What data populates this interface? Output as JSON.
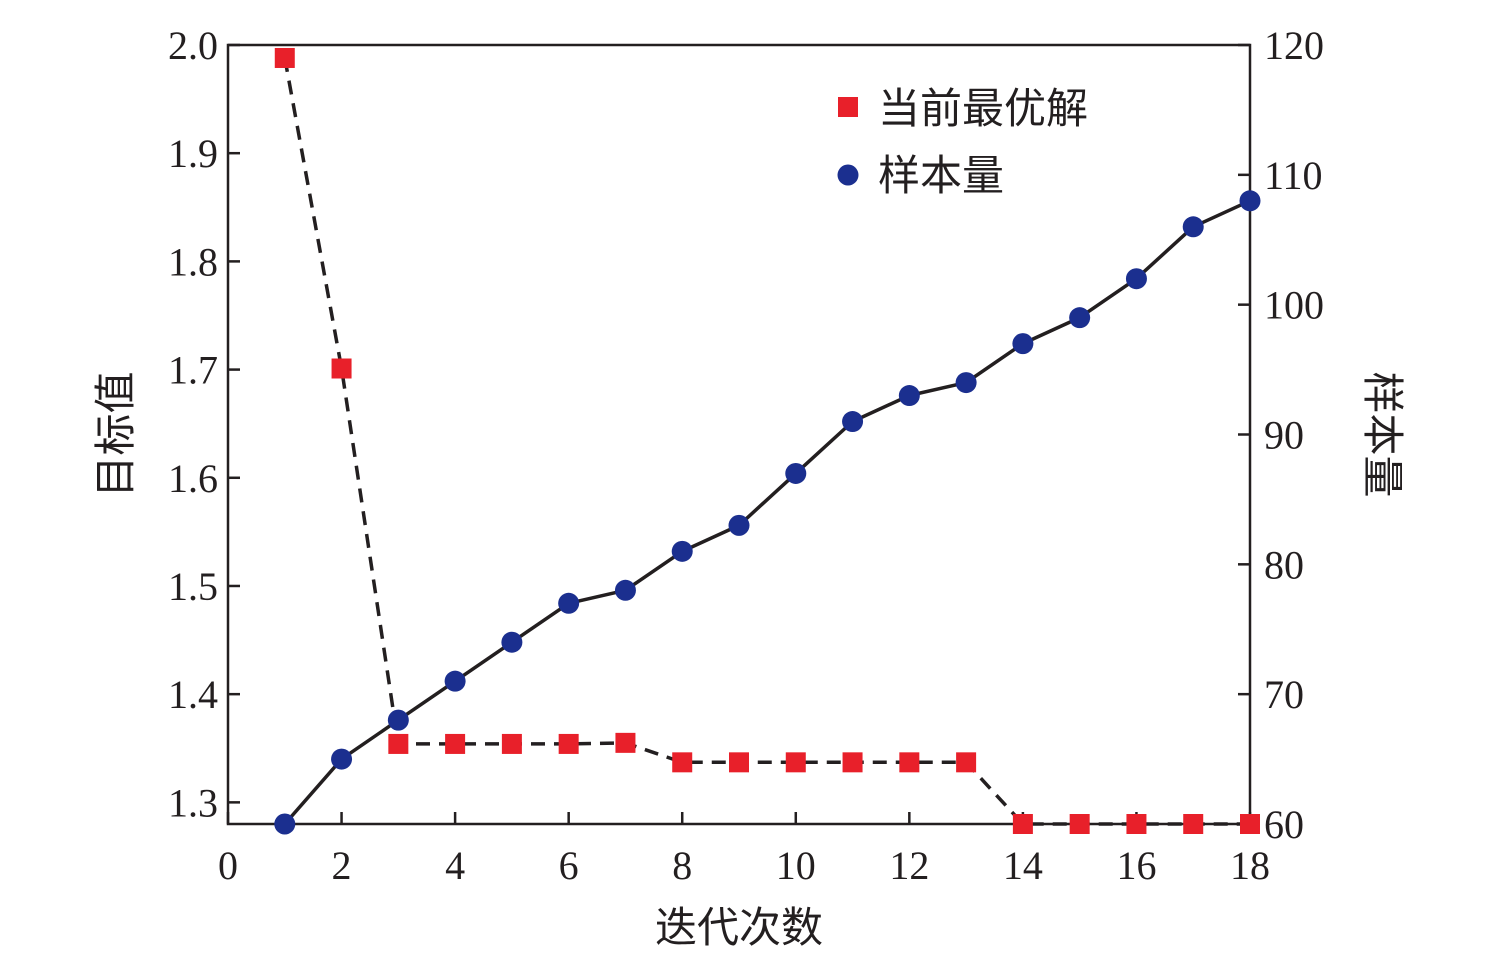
{
  "chart_data": {
    "type": "line",
    "title": "",
    "xlabel": "迭代次数",
    "ylabel_left": "目标值",
    "ylabel_right": "样本量",
    "xlim": [
      0,
      18
    ],
    "ylim_left": [
      1.28,
      2.0
    ],
    "ylim_right": [
      60,
      120
    ],
    "x_ticks": [
      0,
      2,
      4,
      6,
      8,
      10,
      12,
      14,
      16,
      18
    ],
    "y_left_ticks": [
      "1.3",
      "1.4",
      "1.5",
      "1.6",
      "1.7",
      "1.8",
      "1.9",
      "2.0"
    ],
    "y_right_ticks": [
      "60",
      "70",
      "80",
      "90",
      "100",
      "110",
      "120"
    ],
    "grid": false,
    "legend_position": "top-right",
    "series": [
      {
        "name": "当前最优解",
        "axis": "left",
        "marker": "square",
        "line_style": "dashed",
        "color": "#e8202a",
        "x": [
          1,
          2,
          3,
          4,
          5,
          6,
          7,
          8,
          9,
          10,
          11,
          12,
          13,
          14,
          15,
          16,
          17,
          18
        ],
        "values": [
          1.988,
          1.701,
          1.354,
          1.354,
          1.354,
          1.354,
          1.355,
          1.337,
          1.337,
          1.337,
          1.337,
          1.337,
          1.337,
          1.28,
          1.28,
          1.28,
          1.28,
          1.28
        ]
      },
      {
        "name": "样本量",
        "axis": "right",
        "marker": "circle",
        "line_style": "solid",
        "color": "#1b2f8f",
        "x": [
          1,
          2,
          3,
          4,
          5,
          6,
          7,
          8,
          9,
          10,
          11,
          12,
          13,
          14,
          15,
          16,
          17,
          18
        ],
        "values": [
          60,
          65,
          68,
          71,
          74,
          77,
          78,
          81,
          83,
          87,
          91,
          93,
          94,
          97,
          99,
          102,
          106,
          108
        ]
      }
    ],
    "colors": {
      "line": "#231f20",
      "axis": "#231f20"
    }
  }
}
